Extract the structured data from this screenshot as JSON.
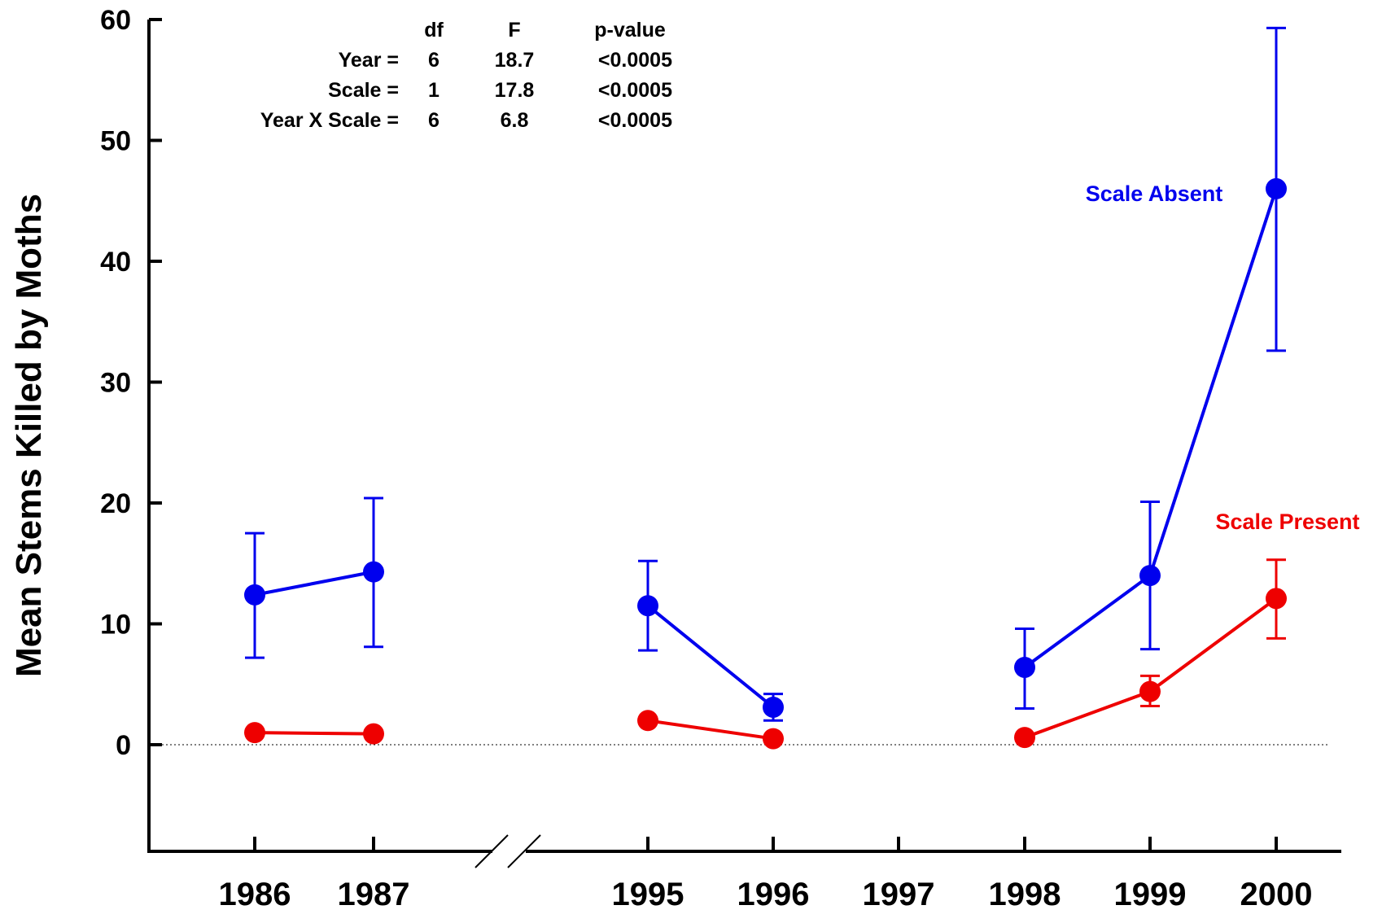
{
  "chart_data": {
    "type": "line",
    "title": "",
    "xlabel": "",
    "ylabel": "Mean Stems Killed by Moths",
    "ylim": [
      -9,
      60
    ],
    "yticks": [
      0,
      10,
      20,
      30,
      40,
      50,
      60
    ],
    "categories": [
      "1986",
      "1987",
      "1995",
      "1996",
      "1997",
      "1998",
      "1999",
      "2000"
    ],
    "axis_break_between": [
      "1987",
      "1995"
    ],
    "zero_reference_line": "dotted",
    "grid": false,
    "legend": "inline labels near series",
    "series": [
      {
        "name": "Scale Absent",
        "color": "#0000ee",
        "segments": [
          [
            "1986",
            "1987"
          ],
          [
            "1995",
            "1996"
          ],
          [
            "1998",
            "1999",
            "2000"
          ]
        ],
        "points": [
          {
            "x": "1986",
            "y": 12.4,
            "err_low": 7.2,
            "err_high": 17.5
          },
          {
            "x": "1987",
            "y": 14.3,
            "err_low": 8.1,
            "err_high": 20.4
          },
          {
            "x": "1995",
            "y": 11.5,
            "err_low": 7.8,
            "err_high": 15.2
          },
          {
            "x": "1996",
            "y": 3.1,
            "err_low": 2.0,
            "err_high": 4.2
          },
          {
            "x": "1998",
            "y": 6.4,
            "err_low": 3.0,
            "err_high": 9.6
          },
          {
            "x": "1999",
            "y": 14.0,
            "err_low": 7.9,
            "err_high": 20.1
          },
          {
            "x": "2000",
            "y": 46.0,
            "err_low": 32.6,
            "err_high": 59.3
          }
        ]
      },
      {
        "name": "Scale Present",
        "color": "#ee0000",
        "segments": [
          [
            "1986",
            "1987"
          ],
          [
            "1995",
            "1996"
          ],
          [
            "1998",
            "1999",
            "2000"
          ]
        ],
        "points": [
          {
            "x": "1986",
            "y": 1.0
          },
          {
            "x": "1987",
            "y": 0.9
          },
          {
            "x": "1995",
            "y": 2.0
          },
          {
            "x": "1996",
            "y": 0.5
          },
          {
            "x": "1998",
            "y": 0.6
          },
          {
            "x": "1999",
            "y": 4.4,
            "err_low": 3.2,
            "err_high": 5.7
          },
          {
            "x": "2000",
            "y": 12.1,
            "err_low": 8.8,
            "err_high": 15.3
          }
        ]
      }
    ],
    "annotation_table": {
      "headers": [
        "",
        "df",
        "F",
        "p-value"
      ],
      "rows": [
        [
          "Year =",
          "6",
          "18.7",
          "<0.0005"
        ],
        [
          "Scale =",
          "1",
          "17.8",
          "<0.0005"
        ],
        [
          "Year X Scale =",
          "6",
          "6.8",
          "<0.0005"
        ]
      ]
    }
  }
}
